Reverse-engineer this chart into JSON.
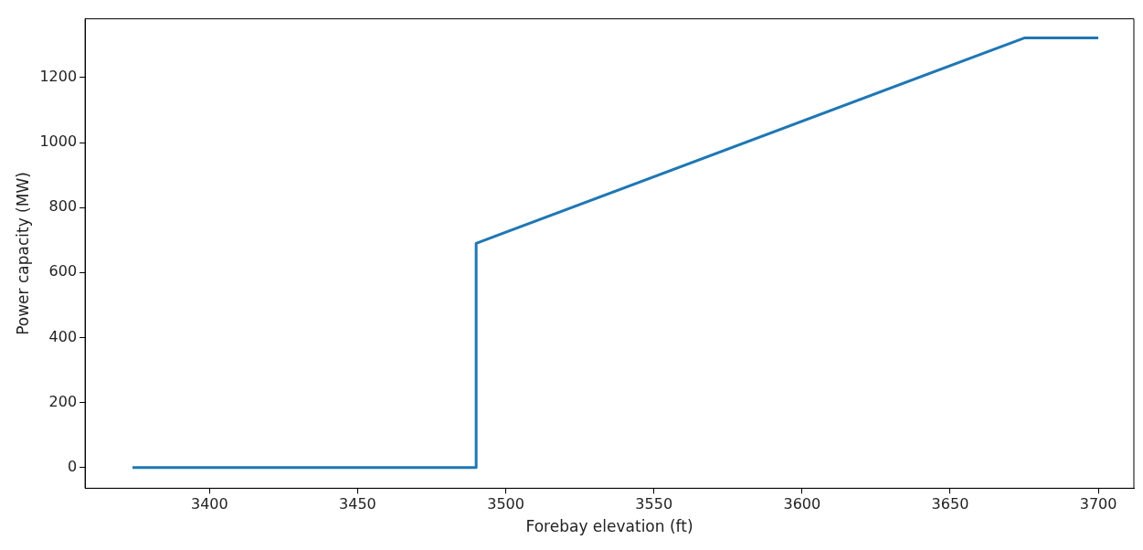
{
  "chart_data": {
    "type": "line",
    "xlabel": "Forebay elevation (ft)",
    "ylabel": "Power capacity (MW)",
    "series": [
      {
        "color": "#1f77b4",
        "x": [
          3374,
          3490,
          3490,
          3675,
          3700
        ],
        "values": [
          0,
          0,
          690,
          1322,
          1322
        ]
      }
    ],
    "xlim": [
      3358,
      3712
    ],
    "xticks": [
      3400,
      3450,
      3500,
      3550,
      3600,
      3650,
      3700
    ],
    "ylim": [
      -64,
      1381
    ],
    "yticks": [
      0,
      200,
      400,
      600,
      800,
      1000,
      1200
    ],
    "grid": false,
    "legend": false,
    "marker": "none",
    "line_style": "solid"
  }
}
